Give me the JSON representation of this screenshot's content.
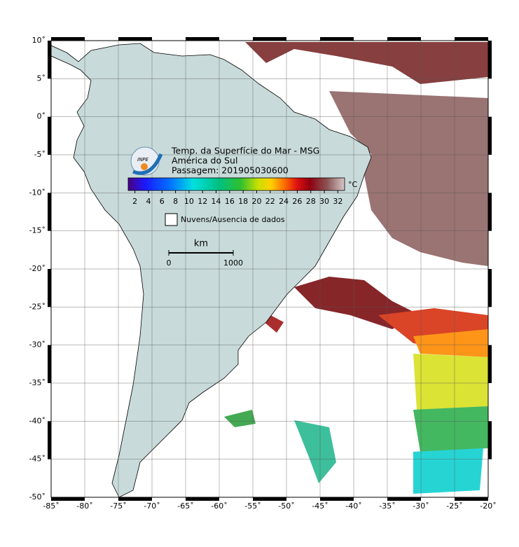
{
  "map": {
    "title": "Temp. da Superfície do Mar - MSG",
    "region": "América do Sul",
    "pass": "Passagem: 201905030600",
    "logo": "INPE",
    "xlim": [
      -85,
      -20
    ],
    "ylim": [
      -50,
      10
    ],
    "xticks": [
      {
        "value": -85,
        "label": "-85˚"
      },
      {
        "value": -80,
        "label": "-80˚"
      },
      {
        "value": -75,
        "label": "-75˚"
      },
      {
        "value": -70,
        "label": "-70˚"
      },
      {
        "value": -65,
        "label": "-65˚"
      },
      {
        "value": -60,
        "label": "-60˚"
      },
      {
        "value": -55,
        "label": "-55˚"
      },
      {
        "value": -50,
        "label": "-50˚"
      },
      {
        "value": -45,
        "label": "-45˚"
      },
      {
        "value": -40,
        "label": "-40˚"
      },
      {
        "value": -35,
        "label": "-35˚"
      },
      {
        "value": -30,
        "label": "-30˚"
      },
      {
        "value": -25,
        "label": "-25˚"
      },
      {
        "value": -20,
        "label": "-20˚"
      }
    ],
    "yticks": [
      {
        "value": 10,
        "label": "10˚"
      },
      {
        "value": 5,
        "label": "5˚"
      },
      {
        "value": 0,
        "label": "0˚"
      },
      {
        "value": -5,
        "label": "-5˚"
      },
      {
        "value": -10,
        "label": "-10˚"
      },
      {
        "value": -15,
        "label": "-15˚"
      },
      {
        "value": -20,
        "label": "-20˚"
      },
      {
        "value": -25,
        "label": "-25˚"
      },
      {
        "value": -30,
        "label": "-30˚"
      },
      {
        "value": -35,
        "label": "-35˚"
      },
      {
        "value": -40,
        "label": "-40˚"
      },
      {
        "value": -45,
        "label": "-45˚"
      },
      {
        "value": -50,
        "label": "-50˚"
      }
    ],
    "grid": true,
    "colorbar": {
      "unit": "°C",
      "range": [
        1,
        33
      ],
      "ticks": [
        2,
        4,
        6,
        8,
        10,
        12,
        14,
        16,
        18,
        20,
        22,
        24,
        26,
        28,
        30,
        32
      ]
    },
    "legend": "Nuvens/Ausencia de dados",
    "scale_bar": {
      "unit": "km",
      "start": "0",
      "end": "1000"
    }
  }
}
